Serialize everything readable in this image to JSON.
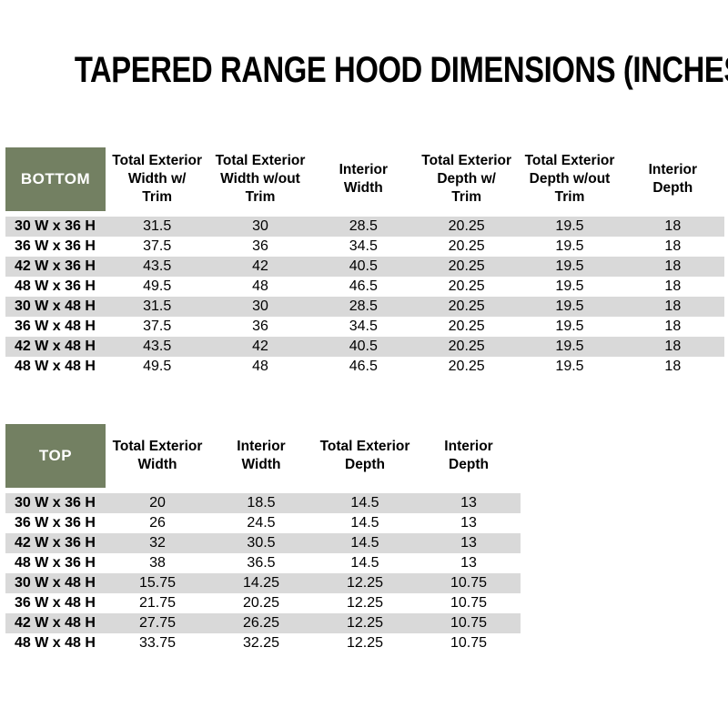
{
  "title": "TAPERED RANGE HOOD DIMENSIONS (INCHES)",
  "colors": {
    "header_green": "#738062",
    "corner_label_text": "#FFFFFF",
    "stripe_gray": "#D9D9D9",
    "body_text": "#000000",
    "page_background": "#FFFFFF"
  },
  "tables": {
    "bottom": {
      "corner_label": "BOTTOM",
      "columns": [
        [
          "Total Exterior",
          "Width w/",
          "Trim"
        ],
        [
          "Total Exterior",
          "Width w/out",
          "Trim"
        ],
        [
          "Interior",
          "Width"
        ],
        [
          "Total Exterior",
          "Depth w/",
          "Trim"
        ],
        [
          "Total Exterior",
          "Depth w/out",
          "Trim"
        ],
        [
          "Interior",
          "Depth"
        ]
      ],
      "rows": [
        {
          "label": "30 W x 36 H",
          "values": [
            "31.5",
            "30",
            "28.5",
            "20.25",
            "19.5",
            "18"
          ]
        },
        {
          "label": "36 W x 36 H",
          "values": [
            "37.5",
            "36",
            "34.5",
            "20.25",
            "19.5",
            "18"
          ]
        },
        {
          "label": "42 W x 36 H",
          "values": [
            "43.5",
            "42",
            "40.5",
            "20.25",
            "19.5",
            "18"
          ]
        },
        {
          "label": "48 W x 36 H",
          "values": [
            "49.5",
            "48",
            "46.5",
            "20.25",
            "19.5",
            "18"
          ]
        },
        {
          "label": "30 W x 48 H",
          "values": [
            "31.5",
            "30",
            "28.5",
            "20.25",
            "19.5",
            "18"
          ]
        },
        {
          "label": "36 W x 48 H",
          "values": [
            "37.5",
            "36",
            "34.5",
            "20.25",
            "19.5",
            "18"
          ]
        },
        {
          "label": "42 W x 48 H",
          "values": [
            "43.5",
            "42",
            "40.5",
            "20.25",
            "19.5",
            "18"
          ]
        },
        {
          "label": "48 W x 48 H",
          "values": [
            "49.5",
            "48",
            "46.5",
            "20.25",
            "19.5",
            "18"
          ]
        }
      ]
    },
    "top": {
      "corner_label": "TOP",
      "columns": [
        [
          "Total Exterior",
          "Width"
        ],
        [
          "Interior",
          "Width"
        ],
        [
          "Total Exterior",
          "Depth"
        ],
        [
          "Interior",
          "Depth"
        ]
      ],
      "rows": [
        {
          "label": "30 W x 36 H",
          "values": [
            "20",
            "18.5",
            "14.5",
            "13"
          ]
        },
        {
          "label": "36 W x 36 H",
          "values": [
            "26",
            "24.5",
            "14.5",
            "13"
          ]
        },
        {
          "label": "42 W x 36 H",
          "values": [
            "32",
            "30.5",
            "14.5",
            "13"
          ]
        },
        {
          "label": "48 W x 36 H",
          "values": [
            "38",
            "36.5",
            "14.5",
            "13"
          ]
        },
        {
          "label": "30 W x 48 H",
          "values": [
            "15.75",
            "14.25",
            "12.25",
            "10.75"
          ]
        },
        {
          "label": "36 W x 48 H",
          "values": [
            "21.75",
            "20.25",
            "12.25",
            "10.75"
          ]
        },
        {
          "label": "42 W x 48 H",
          "values": [
            "27.75",
            "26.25",
            "12.25",
            "10.75"
          ]
        },
        {
          "label": "48 W x 48 H",
          "values": [
            "33.75",
            "32.25",
            "12.25",
            "10.75"
          ]
        }
      ]
    }
  }
}
